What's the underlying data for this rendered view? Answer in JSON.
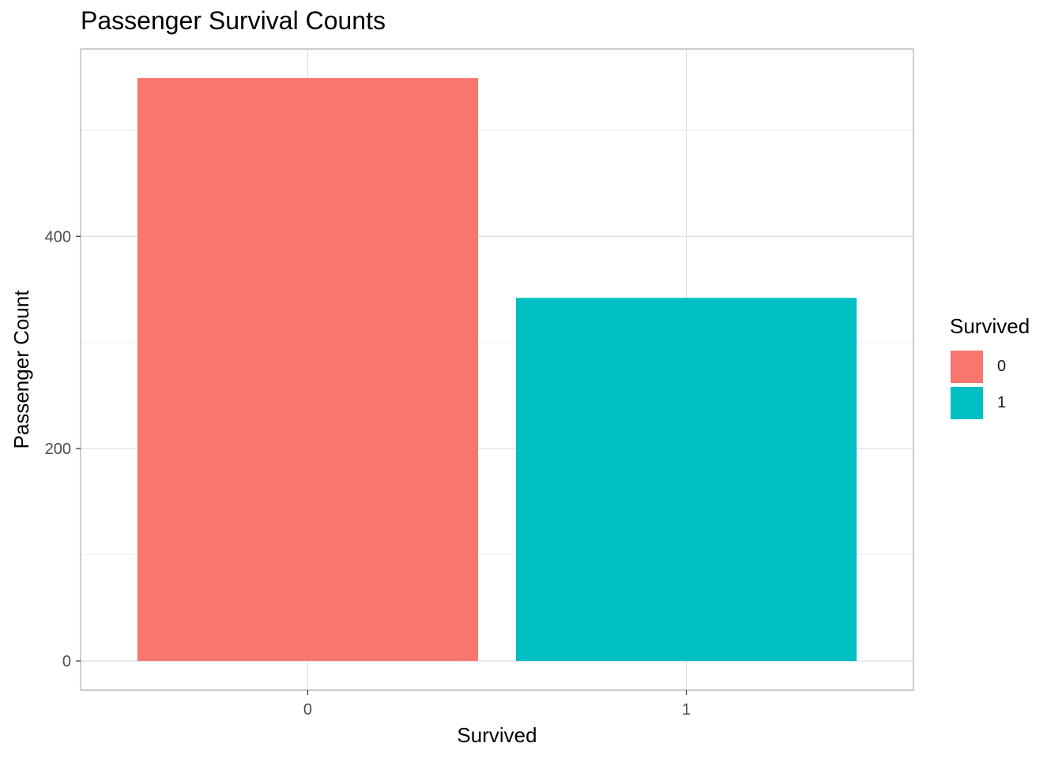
{
  "chart_data": {
    "type": "bar",
    "title": "Passenger Survival Counts",
    "xlabel": "Survived",
    "ylabel": "Passenger Count",
    "categories": [
      "0",
      "1"
    ],
    "values": [
      549,
      342
    ],
    "colors": [
      "#F8766D",
      "#00BFC4"
    ],
    "ylim": [
      -27.45,
      576.45
    ],
    "yticks": [
      0,
      200,
      400
    ],
    "ytick_labels": [
      "0",
      "200",
      "400"
    ],
    "grid": true,
    "legend": {
      "title": "Survived",
      "placement": "right",
      "items": [
        {
          "label": "0",
          "color": "#F8766D"
        },
        {
          "label": "1",
          "color": "#00BFC4"
        }
      ]
    }
  }
}
